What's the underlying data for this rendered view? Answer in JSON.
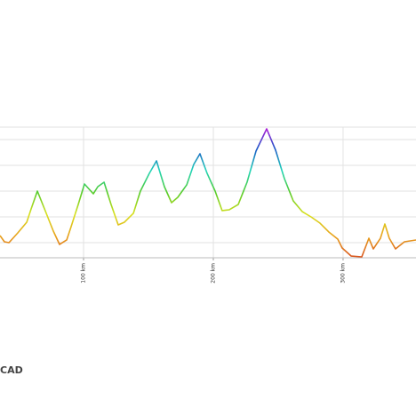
{
  "chart_data": {
    "type": "line",
    "x": [
      35.6,
      39.0,
      42.5,
      49.3,
      56.2,
      59.6,
      64.4,
      69.9,
      76.7,
      81.5,
      87.0,
      90.4,
      95.9,
      100.7,
      107.5,
      111.0,
      115.8,
      121.2,
      126.7,
      131.5,
      138.4,
      143.8,
      150.7,
      156.2,
      162.3,
      167.8,
      172.6,
      179.5,
      184.9,
      189.7,
      195.2,
      201.4,
      206.8,
      212.3,
      219.2,
      226.0,
      232.9,
      241.1,
      248.0,
      254.8,
      261.6,
      268.5,
      275.3,
      282.2,
      289.0,
      295.9,
      299.3,
      306.2,
      314.4,
      319.9,
      323.3,
      328.8,
      332.2,
      335.6,
      340.4,
      347.3,
      356.2
    ],
    "series": [
      {
        "values": [
          638,
          517,
          500,
          690,
          896,
          1155,
          1500,
          1155,
          724,
          466,
          552,
          810,
          1241,
          1638,
          1448,
          1586,
          1672,
          1241,
          845,
          897,
          1069,
          1500,
          1845,
          2086,
          1586,
          1276,
          1379,
          1621,
          2017,
          2224,
          1845,
          1500,
          1121,
          1138,
          1241,
          1672,
          2276,
          2707,
          2293,
          1741,
          1310,
          1103,
          1000,
          879,
          707,
          569,
          397,
          241,
          224,
          586,
          379,
          586,
          862,
          586,
          379,
          517,
          552
        ]
      }
    ],
    "color_scale": [
      "#d9531e",
      "#e8a21c",
      "#d8e01e",
      "#55cc2a",
      "#22d4b8",
      "#1a58c8",
      "#b81ad8"
    ],
    "xlim": [
      35.6,
      356.2
    ],
    "xticks": [
      {
        "value": 100,
        "label": "100 km"
      },
      {
        "value": 200,
        "label": "200 km"
      },
      {
        "value": 300,
        "label": "300 km"
      }
    ],
    "ylim": [
      207,
      2741
    ],
    "yticks": [
      500,
      1000,
      1500,
      2000,
      2500
    ],
    "grid": true,
    "watermark": "CAD"
  }
}
